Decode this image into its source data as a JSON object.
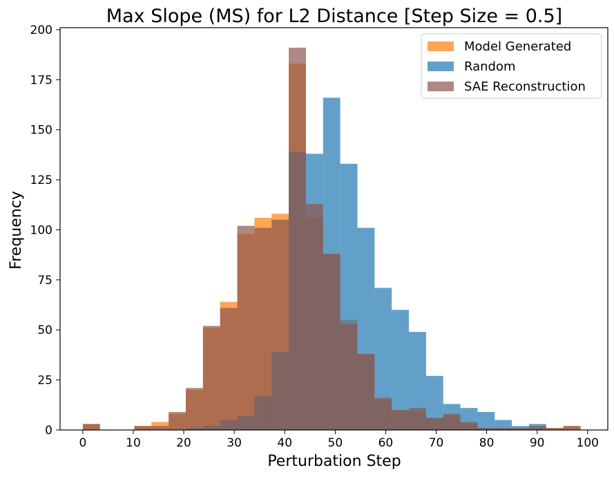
{
  "chart_data": {
    "type": "histogram",
    "title": "Max Slope (MS) for L2 Distance [Step Size = 0.5]",
    "xlabel": "Perturbation Step",
    "ylabel": "Frequency",
    "xlim": [
      -4.5,
      104
    ],
    "ylim": [
      0,
      201
    ],
    "xticks": [
      0,
      10,
      20,
      30,
      40,
      50,
      60,
      70,
      80,
      90,
      100
    ],
    "xtick_labels": [
      "0",
      "10",
      "20",
      "30",
      "40",
      "50",
      "60",
      "70",
      "80",
      "90",
      "100"
    ],
    "yticks": [
      0,
      25,
      50,
      75,
      100,
      125,
      150,
      175,
      200
    ],
    "ytick_labels": [
      "0",
      "25",
      "50",
      "75",
      "100",
      "125",
      "150",
      "175",
      "200"
    ],
    "legend_position": "top-right",
    "bin_width": 3.4,
    "series": [
      {
        "name": "Model Generated",
        "color": "#ff7f0e",
        "opacity": 0.7,
        "bins": [
          [
            0,
            3
          ],
          [
            10.2,
            2
          ],
          [
            13.6,
            4
          ],
          [
            17,
            8
          ],
          [
            20.4,
            20
          ],
          [
            23.8,
            51
          ],
          [
            27.2,
            64
          ],
          [
            30.6,
            98
          ],
          [
            34,
            106
          ],
          [
            37.4,
            108
          ],
          [
            40.8,
            183
          ],
          [
            44.2,
            106
          ],
          [
            47.6,
            88
          ],
          [
            51,
            55
          ],
          [
            54.4,
            38
          ],
          [
            57.8,
            15
          ],
          [
            61.2,
            10
          ],
          [
            64.6,
            9
          ],
          [
            68,
            6
          ],
          [
            71.4,
            7
          ],
          [
            74.8,
            3
          ],
          [
            78.2,
            1
          ],
          [
            81.6,
            1
          ],
          [
            85,
            1
          ],
          [
            88.4,
            1
          ],
          [
            91.8,
            1
          ],
          [
            95.2,
            2
          ]
        ]
      },
      {
        "name": "Random",
        "color": "#1f77b4",
        "opacity": 0.7,
        "bins": [
          [
            20.4,
            1
          ],
          [
            23.8,
            2
          ],
          [
            27.2,
            5
          ],
          [
            30.6,
            7
          ],
          [
            34,
            17
          ],
          [
            37.4,
            39
          ],
          [
            40.8,
            139
          ],
          [
            44.2,
            138
          ],
          [
            47.6,
            166
          ],
          [
            51,
            133
          ],
          [
            54.4,
            101
          ],
          [
            57.8,
            71
          ],
          [
            61.2,
            60
          ],
          [
            64.6,
            49
          ],
          [
            68,
            27
          ],
          [
            71.4,
            13
          ],
          [
            74.8,
            11
          ],
          [
            78.2,
            9
          ],
          [
            81.6,
            5
          ],
          [
            85,
            2
          ],
          [
            88.4,
            3
          ]
        ]
      },
      {
        "name": "SAE Reconstruction",
        "color": "#8c564b",
        "opacity": 0.7,
        "bins": [
          [
            0,
            3
          ],
          [
            10.2,
            2
          ],
          [
            13.6,
            2
          ],
          [
            17,
            9
          ],
          [
            20.4,
            21
          ],
          [
            23.8,
            52
          ],
          [
            27.2,
            61
          ],
          [
            30.6,
            102
          ],
          [
            34,
            101
          ],
          [
            37.4,
            105
          ],
          [
            40.8,
            191
          ],
          [
            44.2,
            113
          ],
          [
            47.6,
            88
          ],
          [
            51,
            53
          ],
          [
            54.4,
            38
          ],
          [
            57.8,
            16
          ],
          [
            61.2,
            10
          ],
          [
            64.6,
            11
          ],
          [
            68,
            6
          ],
          [
            71.4,
            8
          ],
          [
            74.8,
            4
          ],
          [
            78.2,
            1
          ],
          [
            81.6,
            1
          ],
          [
            85,
            1
          ],
          [
            88.4,
            2
          ],
          [
            91.8,
            1
          ],
          [
            95.2,
            2
          ]
        ]
      }
    ]
  }
}
